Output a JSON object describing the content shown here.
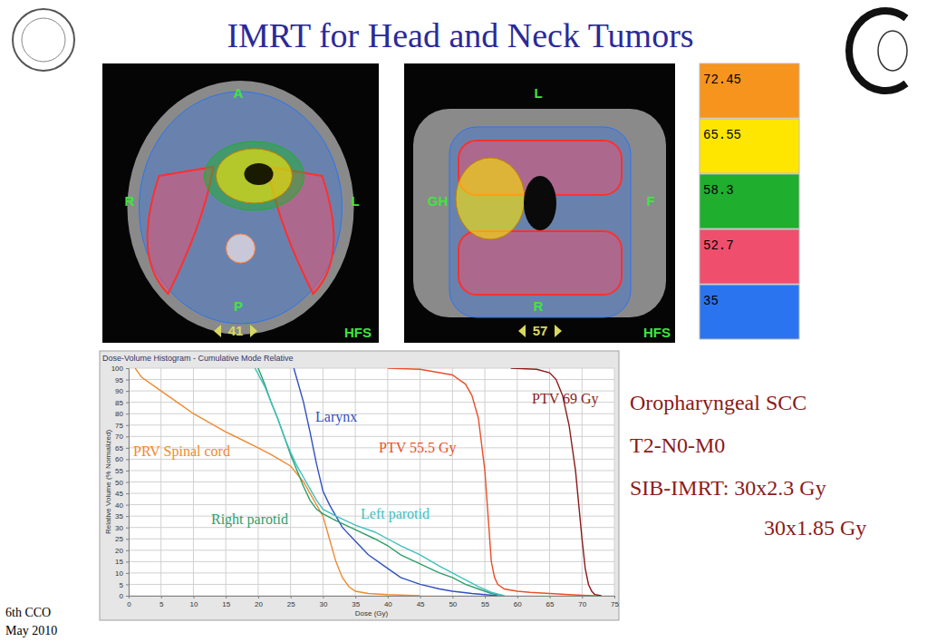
{
  "slide": {
    "title": "IMRT for Head and Neck Tumors",
    "footer": [
      "6th CCO",
      "May 2010"
    ],
    "case_text": [
      "Oropharyngeal SCC",
      "T2-N0-M0",
      "SIB-IMRT: 30x2.3 Gy",
      "30x1.85 Gy"
    ],
    "dose_legend": [
      {
        "value": 72.45,
        "color": "#f7941d"
      },
      {
        "value": 65.55,
        "color": "#ffe600"
      },
      {
        "value": 58.3,
        "color": "#1fae2e"
      },
      {
        "value": 52.7,
        "color": "#ef4f6d"
      },
      {
        "value": 35,
        "color": "#2b74ef"
      }
    ],
    "ct_images": [
      {
        "labels": [
          "A",
          "R",
          "L",
          "P",
          "41",
          "HFS"
        ]
      },
      {
        "labels": [
          "L",
          "GH",
          "F",
          "R",
          "57",
          "HFS"
        ]
      }
    ]
  },
  "chart_data": {
    "type": "line",
    "title": "Dose-Volume Histogram - Cumulative Mode Relative",
    "x_label": "Dose (Gy)",
    "y_label": "Relative Volume (% Normalized)",
    "xlim": [
      0,
      75
    ],
    "ylim": [
      0,
      100
    ],
    "xticks": [
      0,
      5,
      10,
      15,
      20,
      25,
      30,
      35,
      40,
      45,
      50,
      55,
      60,
      65,
      70,
      75
    ],
    "yticks": [
      0,
      5,
      10,
      15,
      20,
      25,
      30,
      35,
      40,
      45,
      50,
      55,
      60,
      65,
      70,
      75,
      80,
      85,
      90,
      95,
      100
    ],
    "grid": true,
    "series": [
      {
        "name": "PTV 69 Gy",
        "color": "#8b1a1a",
        "x": [
          59,
          63,
          65,
          66,
          67,
          68,
          69,
          69.5,
          70,
          70.5,
          71,
          71.5,
          72,
          73
        ],
        "values": [
          100,
          99.5,
          98,
          95,
          88,
          75,
          55,
          40,
          25,
          12,
          5,
          2,
          0.5,
          0
        ]
      },
      {
        "name": "Larynx",
        "color": "#3050c0",
        "x": [
          25.5,
          26,
          27,
          28,
          29,
          30,
          31,
          32,
          33,
          35,
          37,
          40,
          42,
          45,
          48,
          50,
          53,
          55,
          57
        ],
        "values": [
          100,
          95,
          85,
          72,
          58,
          46,
          40,
          35,
          30,
          24,
          18,
          12,
          8,
          5,
          3,
          2,
          1,
          0.5,
          0
        ]
      },
      {
        "name": "PTV 55.5 Gy",
        "color": "#e8502a",
        "x": [
          40,
          45,
          50,
          52,
          53,
          54,
          55,
          55.5,
          56,
          56.5,
          57,
          58,
          60,
          62,
          65,
          68,
          70,
          72
        ],
        "values": [
          100,
          99.5,
          97,
          93,
          88,
          78,
          55,
          35,
          15,
          8,
          5,
          3,
          2,
          1.5,
          1,
          0.5,
          0.2,
          0
        ]
      },
      {
        "name": "PRV Spinal cord",
        "color": "#f08a30",
        "x": [
          1,
          2,
          5,
          8,
          10,
          15,
          20,
          22,
          25,
          27,
          28,
          30,
          31,
          32,
          33,
          34,
          35,
          37,
          40,
          45
        ],
        "values": [
          100,
          96,
          90,
          84,
          80,
          72,
          65,
          62,
          57,
          50,
          45,
          35,
          25,
          15,
          8,
          4,
          2,
          1,
          0.5,
          0
        ]
      },
      {
        "name": "Right parotid",
        "color": "#2e9e6a",
        "x": [
          20,
          21,
          22,
          23,
          24,
          25,
          26,
          27,
          28,
          29,
          30,
          32,
          35,
          38,
          40,
          42,
          45,
          48,
          50,
          52,
          54,
          56,
          58
        ],
        "values": [
          100,
          93,
          85,
          78,
          70,
          62,
          55,
          48,
          42,
          38,
          36,
          33,
          29,
          25,
          22,
          18,
          14,
          10,
          8,
          5,
          3,
          1,
          0
        ]
      },
      {
        "name": "Left parotid",
        "color": "#3fc0c0",
        "x": [
          19.5,
          21,
          22,
          23,
          24,
          25,
          26,
          27,
          28,
          29,
          30,
          32,
          35,
          38,
          40,
          42,
          45,
          48,
          50,
          52,
          54,
          56,
          58
        ],
        "values": [
          100,
          92,
          85,
          78,
          70,
          63,
          57,
          52,
          47,
          42,
          38,
          35,
          31,
          28,
          25,
          22,
          18,
          13,
          10,
          7,
          4,
          1.5,
          0
        ]
      }
    ]
  }
}
